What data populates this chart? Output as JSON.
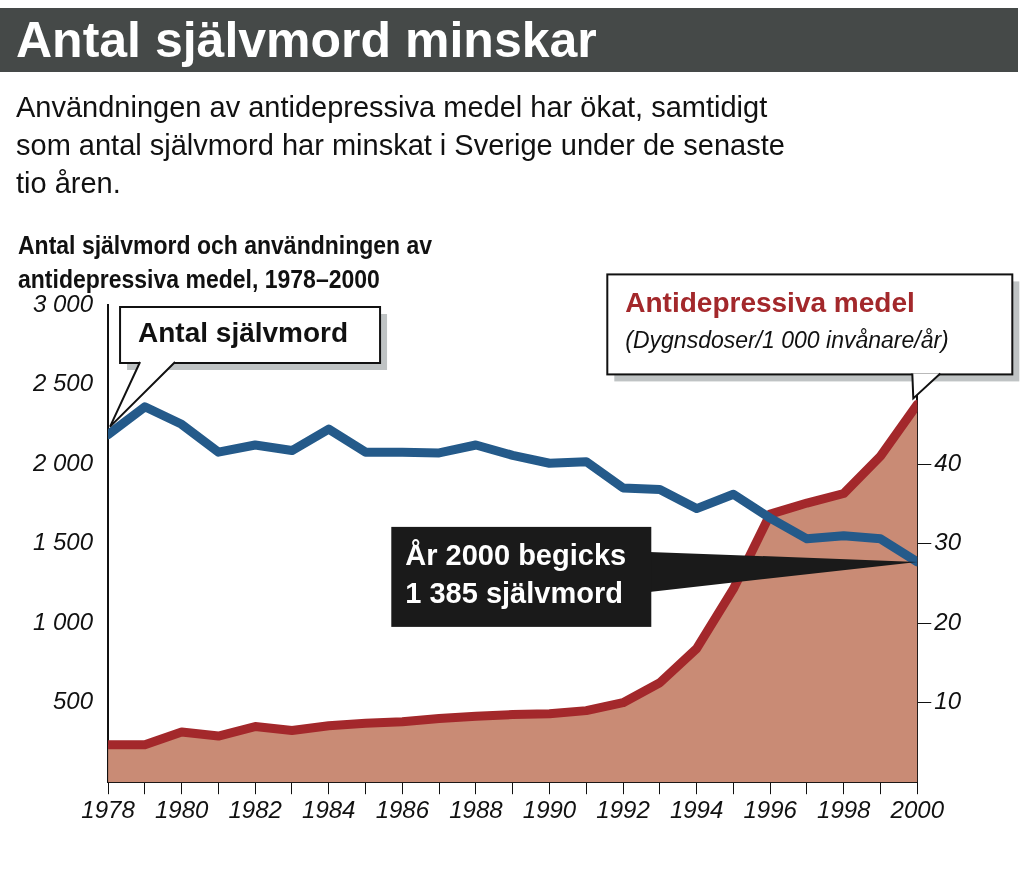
{
  "chart_data": {
    "type": "line",
    "title": "Antal självmord minskar",
    "subtitle": "Användningen av antidepressiva medel har ökat, samtidigt som antal självmord har minskat i Sverige under de senaste tio åren.",
    "annotations": [
      "Antal självmord och användningen av antidepressiva medel, 1978–2000",
      "(Dygnsdoser/1 000 invånare/år)",
      {
        "text": "År 2000 begicks\n1 385 självmord",
        "x": 2000,
        "y": 1385
      }
    ],
    "x": [
      1978,
      1979,
      1980,
      1981,
      1982,
      1983,
      1984,
      1985,
      1986,
      1987,
      1988,
      1989,
      1990,
      1991,
      1992,
      1993,
      1994,
      1995,
      1996,
      1997,
      1998,
      1999,
      2000
    ],
    "series": [
      {
        "name": "Antal självmord",
        "color": "#245a8a",
        "values": [
          2185,
          2360,
          2250,
          2075,
          2120,
          2085,
          2220,
          2075,
          2075,
          2070,
          2120,
          2055,
          2005,
          2015,
          1850,
          1840,
          1720,
          1810,
          1660,
          1530,
          1550,
          1530,
          1385
        ]
      },
      {
        "name": "Antidepressiva medel",
        "type": "area",
        "axis": "y2",
        "color": "#a3282b",
        "values": [
          4.7,
          4.7,
          6.3,
          5.8,
          7.0,
          6.5,
          7.1,
          7.4,
          7.6,
          8.0,
          8.3,
          8.5,
          8.6,
          9.0,
          10.0,
          12.5,
          16.8,
          24.3,
          33.7,
          35.1,
          36.3,
          41.0,
          47.5
        ]
      }
    ],
    "xlim": [
      1978,
      2000
    ],
    "xticks": [
      1978,
      {
        "value": 1979,
        "label": null
      },
      1980,
      {
        "value": 1981,
        "label": null
      },
      1982,
      {
        "value": 1983,
        "label": null
      },
      1984,
      {
        "value": 1985,
        "label": null
      },
      1986,
      {
        "value": 1987,
        "label": null
      },
      1988,
      {
        "value": 1989,
        "label": null
      },
      1990,
      {
        "value": 1991,
        "label": null
      },
      1992,
      {
        "value": 1993,
        "label": null
      },
      1994,
      {
        "value": 1995,
        "label": null
      },
      1996,
      {
        "value": 1997,
        "label": null
      },
      1998,
      {
        "value": 1999,
        "label": null
      },
      2000
    ],
    "ylim": [
      0,
      3000
    ],
    "yticks": [
      {
        "value": 0,
        "label": null
      },
      500,
      {
        "value": 1000,
        "label": "1 000"
      },
      {
        "value": 1500,
        "label": "1 500"
      },
      {
        "value": 2000,
        "label": "2 000"
      },
      {
        "value": 2500,
        "label": "2 500"
      },
      {
        "value": 3000,
        "label": "3 000"
      }
    ],
    "y2lim": [
      0,
      60
    ],
    "y2ticks": [
      10,
      20,
      30,
      40
    ],
    "grid": false,
    "legend": false,
    "marker": "none",
    "line_style": "solid"
  }
}
